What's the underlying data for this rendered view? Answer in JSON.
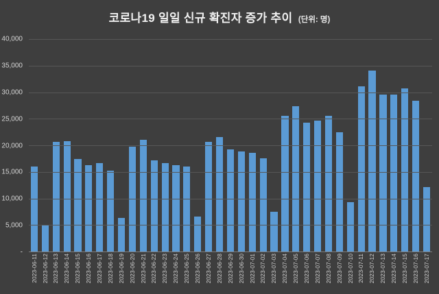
{
  "title": {
    "main": "코로나19 일일 신규 확진자 증가 추이",
    "unit": "(단위: 명)"
  },
  "chart_data": {
    "type": "bar",
    "title": "코로나19 일일 신규 확진자 증가 추이",
    "unit_label": "(단위: 명)",
    "categories": [
      "2023-06-11",
      "2023-06-12",
      "2023-06-13",
      "2023-06-14",
      "2023-06-15",
      "2023-06-16",
      "2023-06-17",
      "2023-06-18",
      "2023-06-19",
      "2023-06-20",
      "2023-06-21",
      "2023-06-22",
      "2023-06-23",
      "2023-06-24",
      "2023-06-25",
      "2023-06-26",
      "2023-06-27",
      "2023-06-28",
      "2023-06-29",
      "2023-06-30",
      "2023-07-01",
      "2023-07-02",
      "2023-07-03",
      "2023-07-04",
      "2023-07-05",
      "2023-07-06",
      "2023-07-07",
      "2023-07-08",
      "2023-07-09",
      "2023-07-10",
      "2023-07-11",
      "2023-07-12",
      "2023-07-13",
      "2023-07-14",
      "2023-07-15",
      "2023-07-16",
      "2023-07-17"
    ],
    "values": [
      16000,
      5000,
      20600,
      20800,
      17400,
      16300,
      16700,
      15200,
      6300,
      19700,
      21000,
      17100,
      16600,
      16300,
      16000,
      6600,
      20700,
      21500,
      19200,
      18800,
      18600,
      17500,
      7500,
      25500,
      27400,
      24300,
      24700,
      25500,
      22500,
      9300,
      31100,
      34100,
      29500,
      29600,
      30700,
      28400,
      12100
    ],
    "xlabel": "",
    "ylabel": "",
    "ylim": [
      0,
      40000
    ],
    "ytick_interval": 5000,
    "ytick_labels_top_to_bottom": [
      "40,000",
      "35,000",
      "30,000",
      "25,000",
      "20,000",
      "15,000",
      "10,000",
      "5,000",
      "-"
    ],
    "grid": true,
    "legend": "none",
    "bar_color": "#5b9bd5",
    "background_color": "#3e3e3e",
    "gridline_color": "#575757",
    "text_color": "#d6d6d6"
  }
}
